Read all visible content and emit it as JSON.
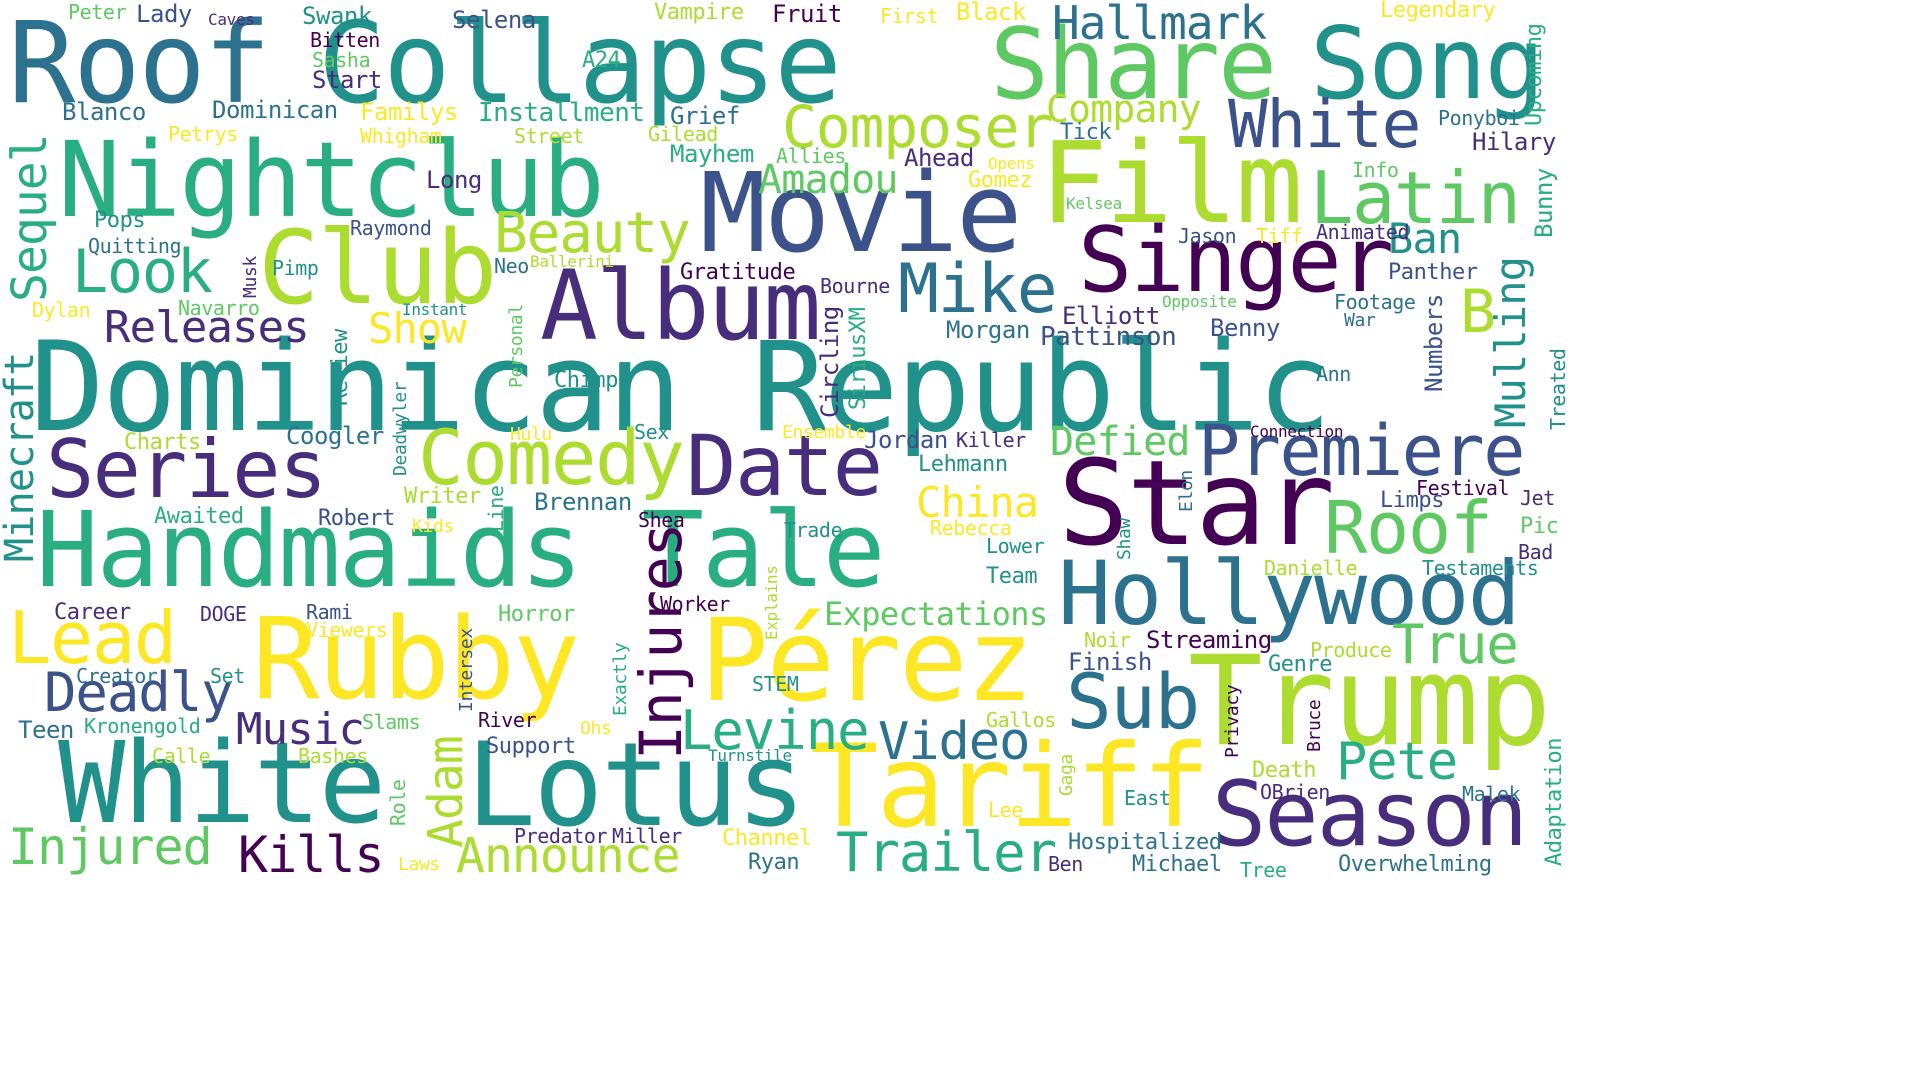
{
  "palette": {
    "c1": "#440154",
    "c2": "#472d7b",
    "c3": "#3b528b",
    "c4": "#2c728e",
    "c5": "#21918c",
    "c6": "#28ae80",
    "c7": "#5ec962",
    "c8": "#addc30",
    "c9": "#fde725"
  },
  "words": [
    {
      "text": "Dominican Republic",
      "color": "c5"
    },
    {
      "text": "Roof",
      "color": "c4"
    },
    {
      "text": "Collapse",
      "color": "c5"
    },
    {
      "text": "Share",
      "color": "c7"
    },
    {
      "text": "Song",
      "color": "c5"
    },
    {
      "text": "Nightclub",
      "color": "c6"
    },
    {
      "text": "Film",
      "color": "c8"
    },
    {
      "text": "Movie",
      "color": "c3"
    },
    {
      "text": "Club",
      "color": "c8"
    },
    {
      "text": "Album",
      "color": "c2"
    },
    {
      "text": "Singer",
      "color": "c1"
    },
    {
      "text": "Handmaids Tale",
      "color": "c6"
    },
    {
      "text": "Rubby",
      "color": "c9"
    },
    {
      "text": "Pérez",
      "color": "c9"
    },
    {
      "text": "Star",
      "color": "c1"
    },
    {
      "text": "Trump",
      "color": "c8"
    },
    {
      "text": "White",
      "color": "c5"
    },
    {
      "text": "Lotus",
      "color": "c5"
    },
    {
      "text": "Tariff",
      "color": "c9"
    },
    {
      "text": "Hollywood",
      "color": "c4"
    },
    {
      "text": "Season",
      "color": "c2"
    },
    {
      "text": "Series",
      "color": "c2"
    },
    {
      "text": "Comedy",
      "color": "c8"
    },
    {
      "text": "Date",
      "color": "c2"
    },
    {
      "text": "Premiere",
      "color": "c3"
    },
    {
      "text": "White",
      "color": "c3"
    },
    {
      "text": "Latin",
      "color": "c7"
    },
    {
      "text": "Mike",
      "color": "c4"
    },
    {
      "text": "Composer",
      "color": "c8"
    },
    {
      "text": "Look",
      "color": "c6"
    },
    {
      "text": "Lead",
      "color": "c9"
    },
    {
      "text": "Roof",
      "color": "c7"
    },
    {
      "text": "Sub",
      "color": "c4"
    },
    {
      "text": "Deadly",
      "color": "c3"
    },
    {
      "text": "Injures",
      "color": "c1"
    },
    {
      "text": "Hallmark",
      "color": "c4"
    },
    {
      "text": "Beauty",
      "color": "c8"
    },
    {
      "text": "Releases",
      "color": "c2"
    },
    {
      "text": "Music",
      "color": "c2"
    },
    {
      "text": "Levine",
      "color": "c6"
    },
    {
      "text": "Video",
      "color": "c4"
    },
    {
      "text": "Injured",
      "color": "c7"
    },
    {
      "text": "Kills",
      "color": "c1"
    },
    {
      "text": "Announce",
      "color": "c8"
    },
    {
      "text": "Trailer",
      "color": "c6"
    },
    {
      "text": "Pete",
      "color": "c6"
    },
    {
      "text": "True",
      "color": "c7"
    },
    {
      "text": "B",
      "color": "c8"
    },
    {
      "text": "Amadou",
      "color": "c7"
    },
    {
      "text": "Company",
      "color": "c8"
    },
    {
      "text": "Show",
      "color": "c9"
    },
    {
      "text": "China",
      "color": "c9"
    },
    {
      "text": "Defied",
      "color": "c7"
    },
    {
      "text": "Expectations",
      "color": "c7"
    },
    {
      "text": "Ban",
      "color": "c5"
    },
    {
      "text": "Adam",
      "color": "c8"
    },
    {
      "text": "Sequel",
      "color": "c6"
    },
    {
      "text": "Minecraft",
      "color": "c5"
    },
    {
      "text": "Mulling",
      "color": "c5"
    },
    {
      "text": "Upcoming",
      "color": "c6"
    },
    {
      "text": "Bunny",
      "color": "c6"
    },
    {
      "text": "Numbers",
      "color": "c3"
    },
    {
      "text": "Adaptation",
      "color": "c6"
    },
    {
      "text": "Treated",
      "color": "c5"
    },
    {
      "text": "Peter",
      "color": "c7"
    },
    {
      "text": "Lady",
      "color": "c3"
    },
    {
      "text": "Caves",
      "color": "c2"
    },
    {
      "text": "Swank",
      "color": "c5"
    },
    {
      "text": "Selena",
      "color": "c3"
    },
    {
      "text": "Vampire",
      "color": "c8"
    },
    {
      "text": "Fruit",
      "color": "c1"
    },
    {
      "text": "First",
      "color": "c9"
    },
    {
      "text": "Black",
      "color": "c9"
    },
    {
      "text": "Legendary",
      "color": "c9"
    },
    {
      "text": "Bitten",
      "color": "c1"
    },
    {
      "text": "Sasha",
      "color": "c7"
    },
    {
      "text": "A24",
      "color": "c6"
    },
    {
      "text": "Start",
      "color": "c2"
    },
    {
      "text": "Blanco",
      "color": "c4"
    },
    {
      "text": "Dominican",
      "color": "c4"
    },
    {
      "text": "Familys",
      "color": "c9"
    },
    {
      "text": "Installment",
      "color": "c6"
    },
    {
      "text": "Grief",
      "color": "c4"
    },
    {
      "text": "Petrys",
      "color": "c9"
    },
    {
      "text": "Whigham",
      "color": "c9"
    },
    {
      "text": "Street",
      "color": "c8"
    },
    {
      "text": "Gilead",
      "color": "c8"
    },
    {
      "text": "Mayhem",
      "color": "c6"
    },
    {
      "text": "Allies",
      "color": "c7"
    },
    {
      "text": "Tick",
      "color": "c4"
    },
    {
      "text": "Ahead",
      "color": "c2"
    },
    {
      "text": "Opens",
      "color": "c9"
    },
    {
      "text": "Gomez",
      "color": "c9"
    },
    {
      "text": "Ponyboi",
      "color": "c4"
    },
    {
      "text": "Hilary",
      "color": "c2"
    },
    {
      "text": "Info",
      "color": "c7"
    },
    {
      "text": "Long",
      "color": "c2"
    },
    {
      "text": "Kelsea",
      "color": "c7"
    },
    {
      "text": "Pops",
      "color": "c5"
    },
    {
      "text": "Raymond",
      "color": "c3"
    },
    {
      "text": "Quitting",
      "color": "c4"
    },
    {
      "text": "Jason",
      "color": "c3"
    },
    {
      "text": "Tiff",
      "color": "c9"
    },
    {
      "text": "Animated",
      "color": "c2"
    },
    {
      "text": "Pimp",
      "color": "c5"
    },
    {
      "text": "Musk",
      "color": "c2"
    },
    {
      "text": "Neo",
      "color": "c4"
    },
    {
      "text": "Ballerini",
      "color": "c8"
    },
    {
      "text": "Gratitude",
      "color": "c1"
    },
    {
      "text": "Panther",
      "color": "c3"
    },
    {
      "text": "Dylan",
      "color": "c9"
    },
    {
      "text": "Navarro",
      "color": "c7"
    },
    {
      "text": "Instant",
      "color": "c5"
    },
    {
      "text": "Bourne",
      "color": "c2"
    },
    {
      "text": "Opposite",
      "color": "c7"
    },
    {
      "text": "Footage",
      "color": "c4"
    },
    {
      "text": "Personal",
      "color": "c7"
    },
    {
      "text": "Elliott",
      "color": "c2"
    },
    {
      "text": "War",
      "color": "c4"
    },
    {
      "text": "Morgan",
      "color": "c4"
    },
    {
      "text": "Pattinson",
      "color": "c3"
    },
    {
      "text": "Benny",
      "color": "c3"
    },
    {
      "text": "Review",
      "color": "c5"
    },
    {
      "text": "Circling",
      "color": "c2"
    },
    {
      "text": "SiriusXM",
      "color": "c6"
    },
    {
      "text": "Chimp",
      "color": "c5"
    },
    {
      "text": "Ann",
      "color": "c4"
    },
    {
      "text": "Deadwyler",
      "color": "c5"
    },
    {
      "text": "Charts",
      "color": "c8"
    },
    {
      "text": "Coogler",
      "color": "c4"
    },
    {
      "text": "Hulu",
      "color": "c9"
    },
    {
      "text": "Sex",
      "color": "c5"
    },
    {
      "text": "Ensemble",
      "color": "c9"
    },
    {
      "text": "Jordan",
      "color": "c3"
    },
    {
      "text": "Killer",
      "color": "c2"
    },
    {
      "text": "Connection",
      "color": "c1"
    },
    {
      "text": "Lehmann",
      "color": "c5"
    },
    {
      "text": "Elon",
      "color": "c4"
    },
    {
      "text": "Writer",
      "color": "c8"
    },
    {
      "text": "Brennan",
      "color": "c4"
    },
    {
      "text": "Festival",
      "color": "c1"
    },
    {
      "text": "Jet",
      "color": "c2"
    },
    {
      "text": "Awaited",
      "color": "c6"
    },
    {
      "text": "Robert",
      "color": "c3"
    },
    {
      "text": "Kids",
      "color": "c9"
    },
    {
      "text": "Line",
      "color": "c6"
    },
    {
      "text": "Shea",
      "color": "c1"
    },
    {
      "text": "Trade",
      "color": "c5"
    },
    {
      "text": "Rebecca",
      "color": "c9"
    },
    {
      "text": "Limps",
      "color": "c3"
    },
    {
      "text": "Pic",
      "color": "c7"
    },
    {
      "text": "Shaw",
      "color": "c5"
    },
    {
      "text": "Lower",
      "color": "c5"
    },
    {
      "text": "Bad",
      "color": "c2"
    },
    {
      "text": "Danielle",
      "color": "c8"
    },
    {
      "text": "Testaments",
      "color": "c5"
    },
    {
      "text": "Team",
      "color": "c5"
    },
    {
      "text": "Career",
      "color": "c2"
    },
    {
      "text": "DOGE",
      "color": "c2"
    },
    {
      "text": "Rami",
      "color": "c3"
    },
    {
      "text": "Horror",
      "color": "c7"
    },
    {
      "text": "Worker",
      "color": "c1"
    },
    {
      "text": "Explains",
      "color": "c8"
    },
    {
      "text": "Viewers",
      "color": "c9"
    },
    {
      "text": "Noir",
      "color": "c8"
    },
    {
      "text": "Streaming",
      "color": "c1"
    },
    {
      "text": "Produce",
      "color": "c8"
    },
    {
      "text": "Set",
      "color": "c5"
    },
    {
      "text": "Creator",
      "color": "c4"
    },
    {
      "text": "Intersex",
      "color": "c3"
    },
    {
      "text": "Exactly",
      "color": "c6"
    },
    {
      "text": "STEM",
      "color": "c5"
    },
    {
      "text": "Finish",
      "color": "c3"
    },
    {
      "text": "Genre",
      "color": "c5"
    },
    {
      "text": "Privacy",
      "color": "c1"
    },
    {
      "text": "Teen",
      "color": "c4"
    },
    {
      "text": "Kronengold",
      "color": "c6"
    },
    {
      "text": "Slams",
      "color": "c7"
    },
    {
      "text": "River",
      "color": "c1"
    },
    {
      "text": "Ohs",
      "color": "c9"
    },
    {
      "text": "Gallos",
      "color": "c8"
    },
    {
      "text": "Bruce",
      "color": "c1"
    },
    {
      "text": "Support",
      "color": "c3"
    },
    {
      "text": "Calle",
      "color": "c8"
    },
    {
      "text": "Bashes",
      "color": "c8"
    },
    {
      "text": "Turnstile",
      "color": "c5"
    },
    {
      "text": "Gaga",
      "color": "c8"
    },
    {
      "text": "Death",
      "color": "c8"
    },
    {
      "text": "Role",
      "color": "c7"
    },
    {
      "text": "East",
      "color": "c5"
    },
    {
      "text": "OBrien",
      "color": "c2"
    },
    {
      "text": "Malek",
      "color": "c4"
    },
    {
      "text": "Lee",
      "color": "c9"
    },
    {
      "text": "Predator",
      "color": "c2"
    },
    {
      "text": "Miller",
      "color": "c2"
    },
    {
      "text": "Channel",
      "color": "c9"
    },
    {
      "text": "Hospitalized",
      "color": "c4"
    },
    {
      "text": "Laws",
      "color": "c9"
    },
    {
      "text": "Ryan",
      "color": "c4"
    },
    {
      "text": "Ben",
      "color": "c2"
    },
    {
      "text": "Michael",
      "color": "c4"
    },
    {
      "text": "Tree",
      "color": "c6"
    },
    {
      "text": "Overwhelming",
      "color": "c4"
    }
  ]
}
